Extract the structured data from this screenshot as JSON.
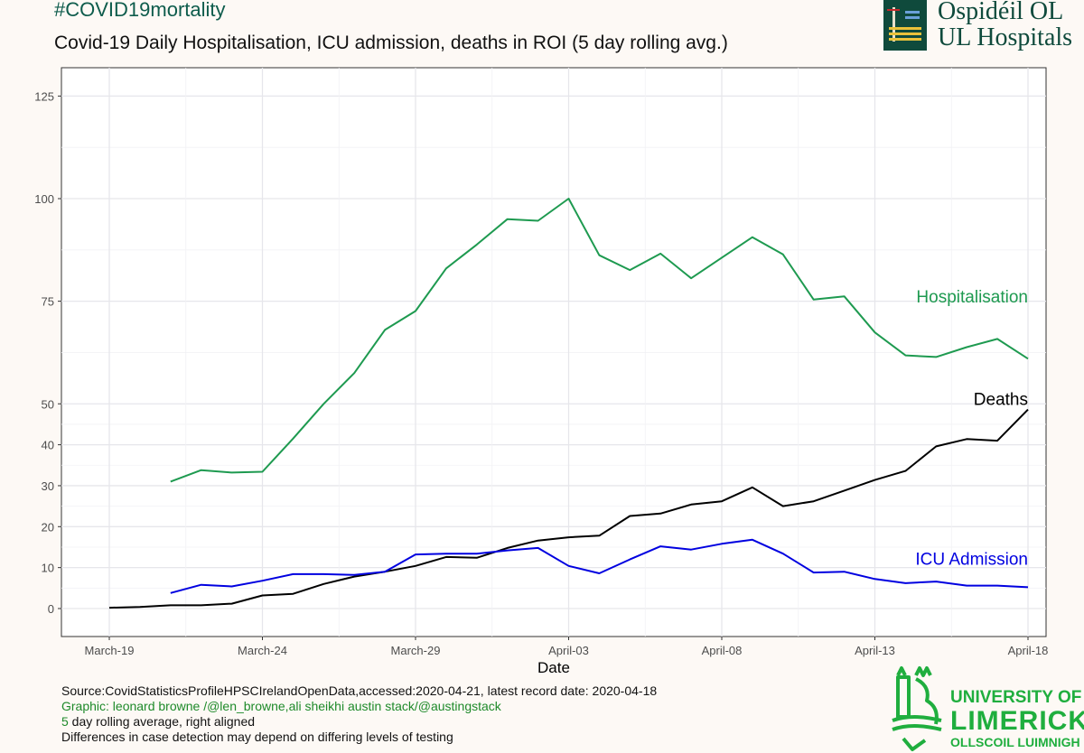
{
  "header": {
    "hashtag": "#COVID19mortality",
    "title": "Covid-19 Daily Hospitalisation, ICU admission, deaths in ROI (5 day rolling avg.)"
  },
  "logo_top": {
    "line1": "Ospidéil OL",
    "line2": "UL Hospitals"
  },
  "footer": {
    "source": "Source:CovidStatisticsProfileHPSCIrelandOpenData,accessed:2020-04-21, latest record date: 2020-04-18",
    "graphic": "Graphic: leonard browne /@len_browne,ali sheikhi austin stack/@austingstack",
    "rolling_num": "5",
    "rolling_text": " day rolling average, right aligned",
    "difference": "Differences in case detection may depend on differing levels of testing"
  },
  "ul_logo": {
    "line1": "UNIVERSITY OF",
    "line2": "LIMERICK",
    "line3": "OLLSCOIL LUIMNIGH"
  },
  "colors": {
    "background": "#fdf9f5",
    "hospitalisation": "#1e9a50",
    "deaths": "#000000",
    "icu": "#0000e0",
    "grid": "#e6e6eb",
    "ul_green": "#1fae3e"
  },
  "chart_data": {
    "type": "line",
    "xlabel": "Date",
    "ylabel": "",
    "x_tick_labels": [
      "March-19",
      "March-24",
      "March-29",
      "April-03",
      "April-08",
      "April-13",
      "April-18"
    ],
    "y_tick_labels": [
      "0",
      "10",
      "20",
      "30",
      "40",
      "50",
      "75",
      "100",
      "125"
    ],
    "y_scale": "piecewise: 0-50 stretched, 50-125 compressed",
    "grid": true,
    "x_dates": [
      "2020-03-19",
      "2020-03-20",
      "2020-03-21",
      "2020-03-22",
      "2020-03-23",
      "2020-03-24",
      "2020-03-25",
      "2020-03-26",
      "2020-03-27",
      "2020-03-28",
      "2020-03-29",
      "2020-03-30",
      "2020-03-31",
      "2020-04-01",
      "2020-04-02",
      "2020-04-03",
      "2020-04-04",
      "2020-04-05",
      "2020-04-06",
      "2020-04-07",
      "2020-04-08",
      "2020-04-09",
      "2020-04-10",
      "2020-04-11",
      "2020-04-12",
      "2020-04-13",
      "2020-04-14",
      "2020-04-15",
      "2020-04-16",
      "2020-04-17",
      "2020-04-18"
    ],
    "series": [
      {
        "name": "Hospitalisation",
        "color": "#1e9a50",
        "values": [
          null,
          null,
          31,
          33.8,
          33.2,
          33.4,
          41.5,
          50,
          57.5,
          68,
          72.6,
          83,
          88.8,
          95,
          94.6,
          100,
          86.2,
          82.6,
          86.6,
          80.6,
          85.6,
          90.6,
          86.4,
          75.4,
          76.2,
          67.4,
          61.8,
          61.4,
          63.8,
          65.8,
          61
        ]
      },
      {
        "name": "Deaths",
        "color": "#000000",
        "values": [
          0.2,
          0.4,
          0.8,
          0.8,
          1.2,
          3.2,
          3.6,
          6,
          7.8,
          9,
          10.4,
          12.6,
          12.4,
          14.8,
          16.6,
          17.4,
          17.8,
          22.6,
          23.2,
          25.4,
          26.2,
          29.6,
          25,
          26.2,
          28.8,
          31.4,
          33.6,
          39.6,
          41.4,
          41,
          48.6
        ]
      },
      {
        "name": "ICU Admission",
        "color": "#0000e0",
        "values": [
          null,
          null,
          3.8,
          5.8,
          5.4,
          6.8,
          8.4,
          8.4,
          8.2,
          9,
          13.2,
          13.4,
          13.4,
          14.2,
          14.8,
          10.4,
          8.6,
          12,
          15.2,
          14.4,
          15.8,
          16.8,
          13.4,
          8.8,
          9,
          7.2,
          6.2,
          6.6,
          5.6,
          5.6,
          5.2
        ]
      }
    ]
  }
}
